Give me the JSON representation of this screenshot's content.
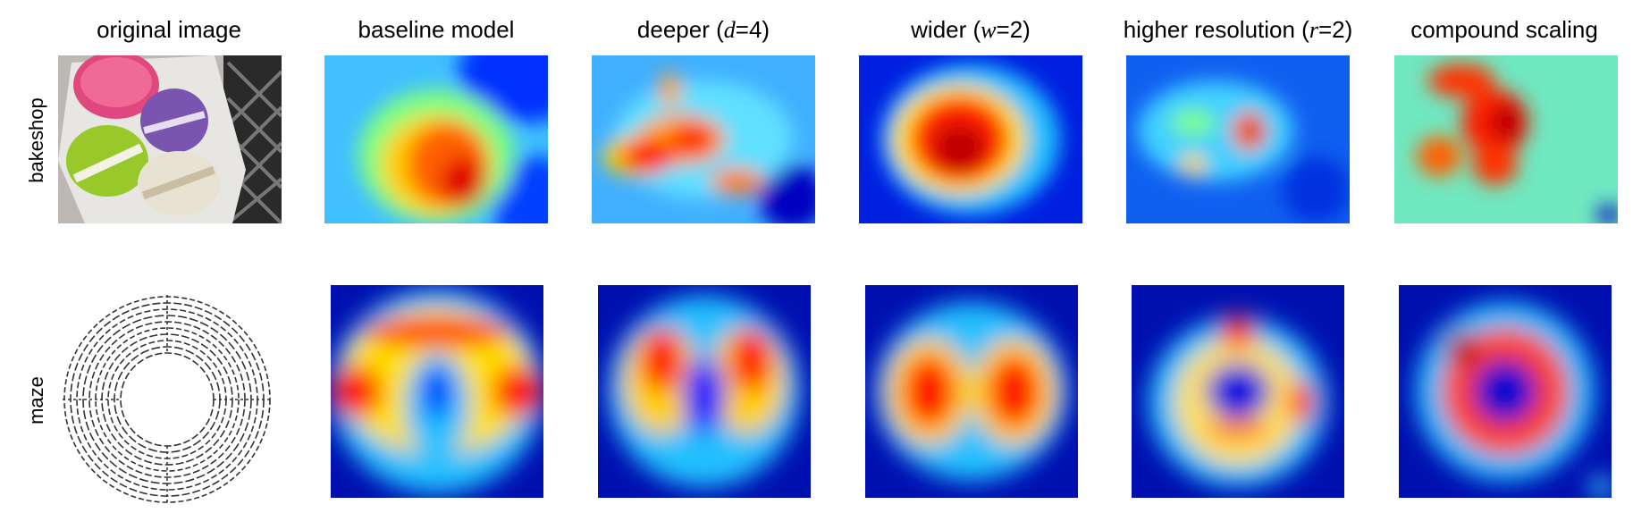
{
  "columns": [
    {
      "text": "original image"
    },
    {
      "text": "baseline model"
    },
    {
      "text": "deeper (",
      "math": "d",
      "rest": "=4)"
    },
    {
      "text": "wider (",
      "math": "w",
      "rest": "=2)"
    },
    {
      "text": "higher resolution (",
      "math": "r",
      "rest": "=2)"
    },
    {
      "text": "compound scaling"
    }
  ],
  "rows": [
    "bakeshop",
    "maze"
  ]
}
